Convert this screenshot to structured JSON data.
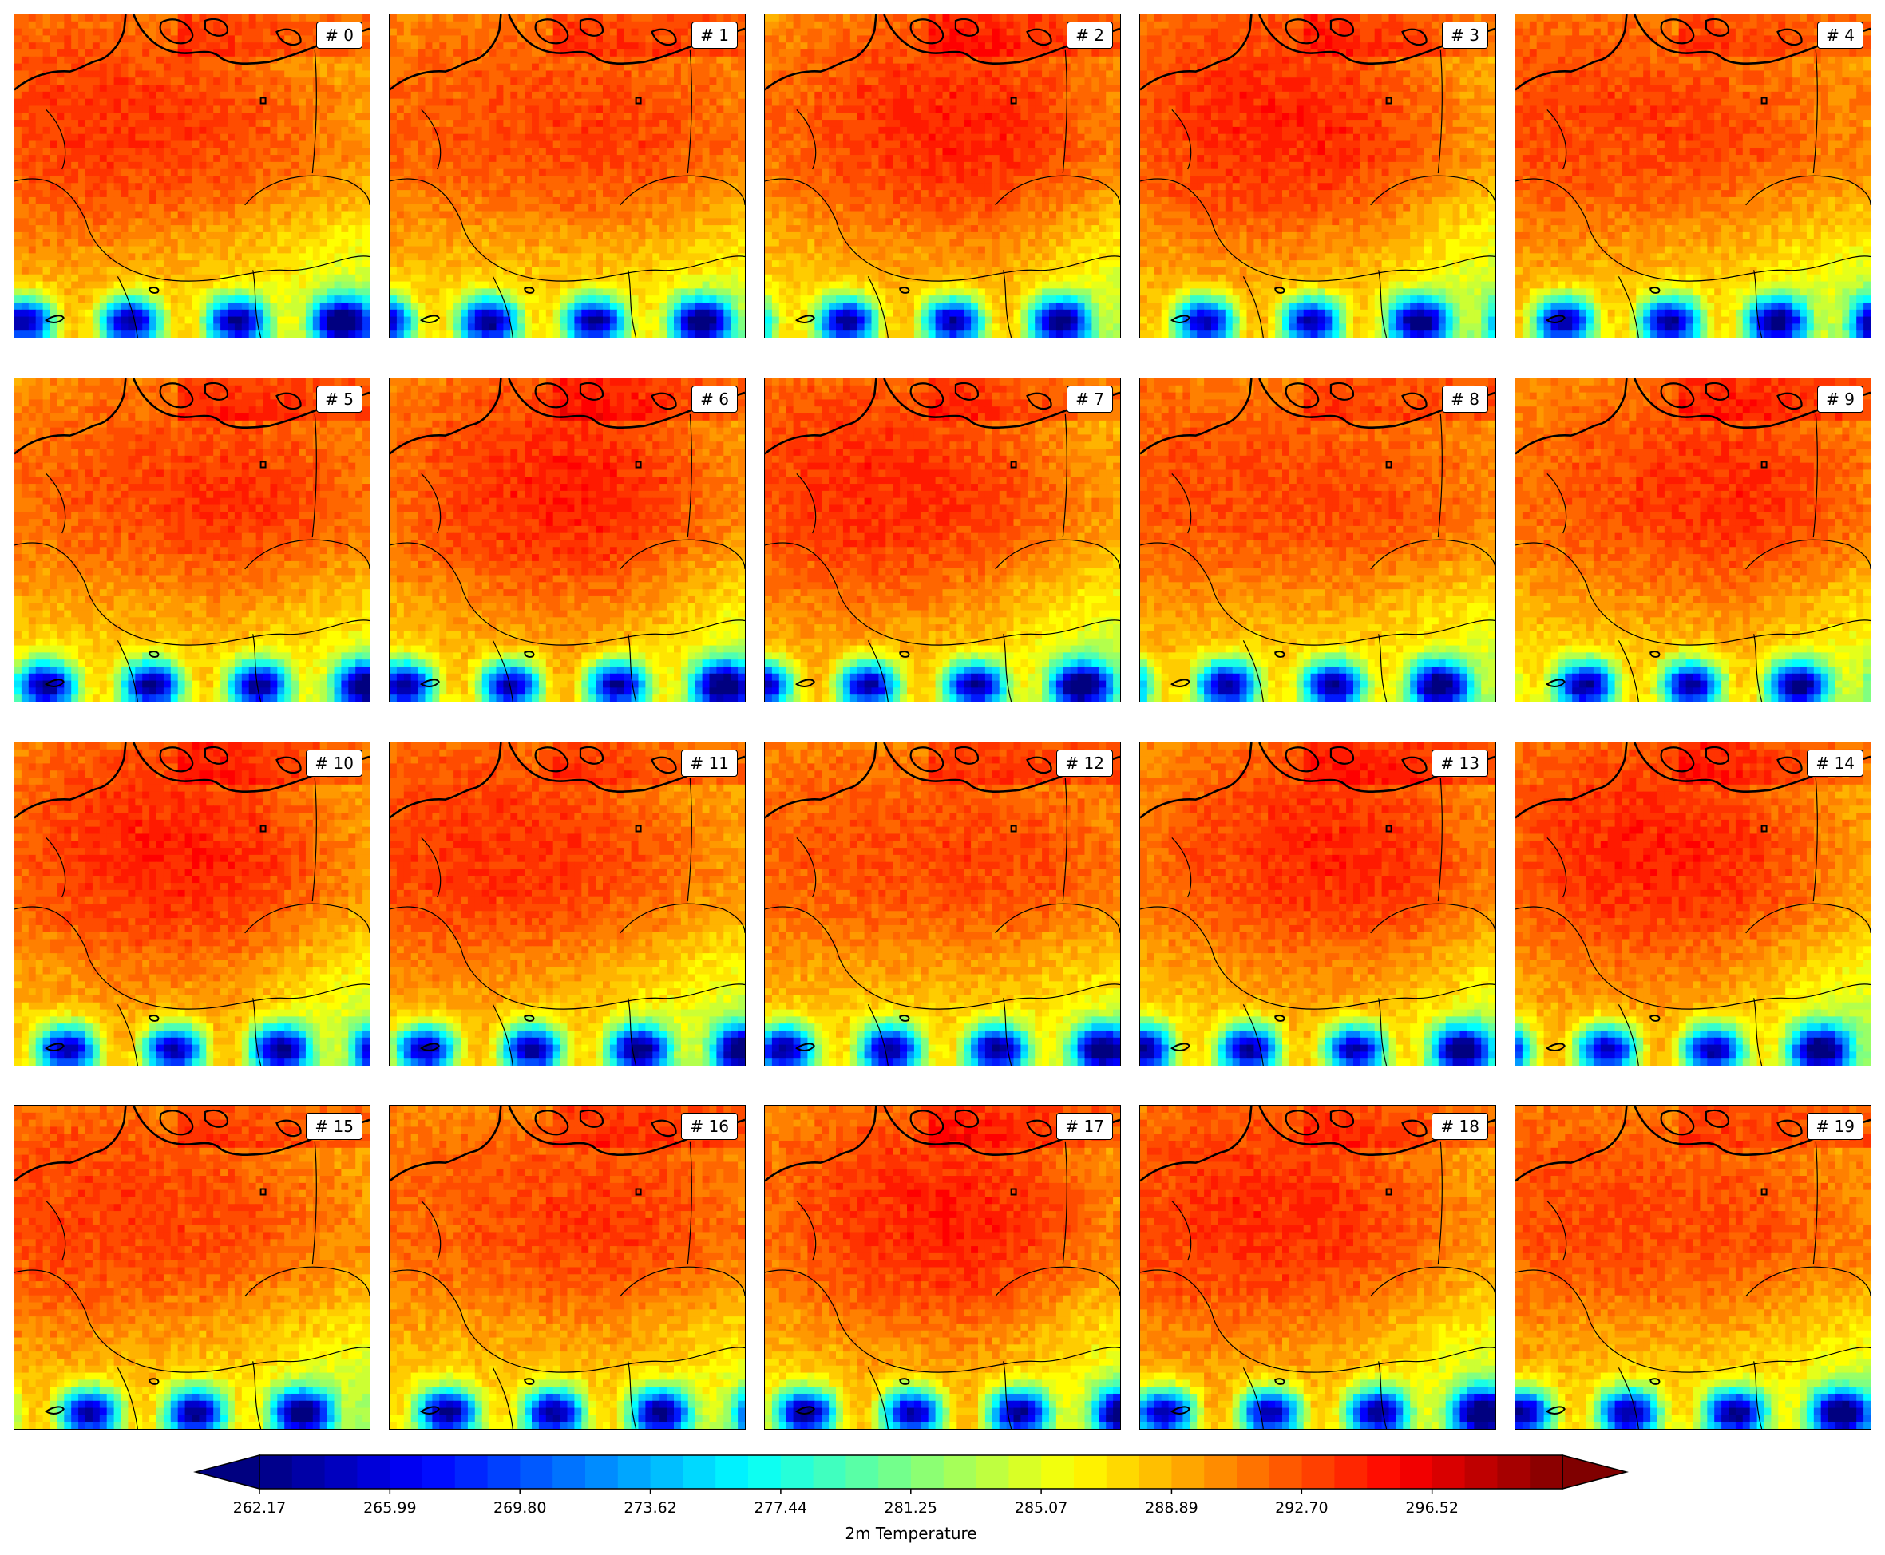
{
  "chart_data": {
    "type": "heatmap",
    "panels": [
      {
        "label": "# 0"
      },
      {
        "label": "# 1"
      },
      {
        "label": "# 2"
      },
      {
        "label": "# 3"
      },
      {
        "label": "# 4"
      },
      {
        "label": "# 5"
      },
      {
        "label": "# 6"
      },
      {
        "label": "# 7"
      },
      {
        "label": "# 8"
      },
      {
        "label": "# 9"
      },
      {
        "label": "# 10"
      },
      {
        "label": "# 11"
      },
      {
        "label": "# 12"
      },
      {
        "label": "# 13"
      },
      {
        "label": "# 14"
      },
      {
        "label": "# 15"
      },
      {
        "label": "# 16"
      },
      {
        "label": "# 17"
      },
      {
        "label": "# 18"
      },
      {
        "label": "# 19"
      }
    ],
    "grid": {
      "rows": 4,
      "cols": 5
    },
    "colorbar": {
      "label": "2m Temperature",
      "colormap": "jet",
      "extend": "both",
      "orientation": "horizontal",
      "range": [
        262.17,
        300.34
      ],
      "levels": 40,
      "ticks": [
        "262.17",
        "265.99",
        "269.80",
        "273.62",
        "277.44",
        "281.25",
        "285.07",
        "288.89",
        "292.70",
        "296.52"
      ]
    }
  }
}
